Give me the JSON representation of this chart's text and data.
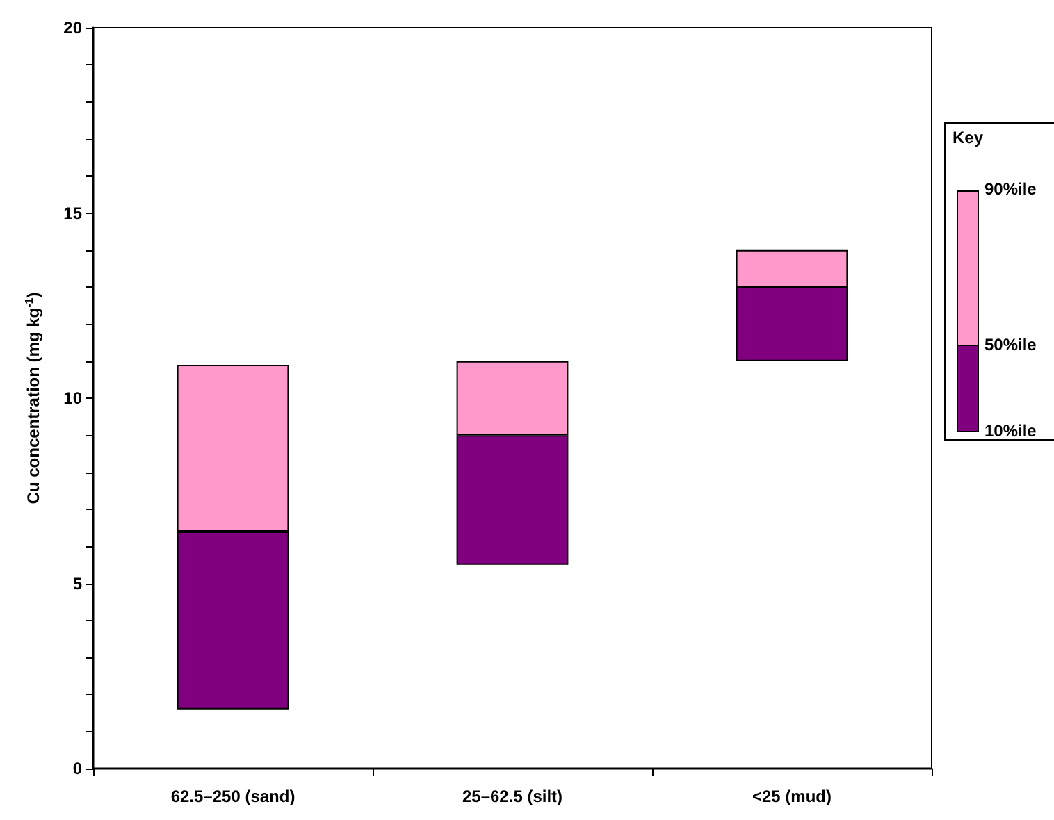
{
  "chart_data": {
    "type": "bar",
    "ylabel": "Cu concentration (mg kg$^{-1}$)",
    "categories": [
      "62.5–250 (sand)",
      "25–62.5 (silt)",
      "<25 (mud)"
    ],
    "series": [
      {
        "color": "#800080",
        "base": [
          1.6,
          5.5,
          11
        ],
        "values": [
          4.8,
          3.5,
          2
        ]
      },
      {
        "color": "#ff99cc",
        "base": [
          6.4,
          9,
          13
        ],
        "values": [
          4.5,
          2,
          1
        ]
      }
    ],
    "ylim": [
      0,
      20
    ],
    "yticks": [
      0,
      {
        "value": 1,
        "label": null
      },
      {
        "value": 2,
        "label": null
      },
      {
        "value": 3,
        "label": null
      },
      {
        "value": 4,
        "label": null
      },
      5,
      {
        "value": 6,
        "label": null
      },
      {
        "value": 7,
        "label": null
      },
      {
        "value": 8,
        "label": null
      },
      {
        "value": 9,
        "label": null
      },
      10,
      {
        "value": 11,
        "label": null
      },
      {
        "value": 12,
        "label": null
      },
      {
        "value": 13,
        "label": null
      },
      {
        "value": 14,
        "label": null
      },
      15,
      {
        "value": 16,
        "label": null
      },
      {
        "value": 17,
        "label": null
      },
      {
        "value": 18,
        "label": null
      },
      {
        "value": 19,
        "label": null
      },
      20
    ],
    "grid": false,
    "legend_title": "Key",
    "annotations": [
      "90%ile",
      "50%ile",
      "10%ile"
    ]
  }
}
